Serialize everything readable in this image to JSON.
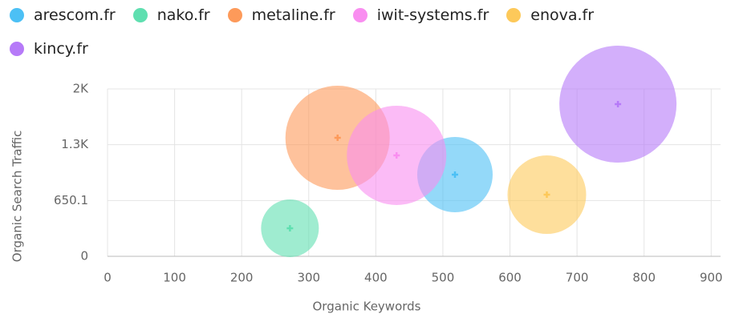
{
  "chart_data": {
    "type": "bubble",
    "x_label": "Organic Keywords",
    "y_label": "Organic Search Traffic",
    "xlim": [
      0,
      914
    ],
    "xticks": [
      0,
      100,
      200,
      300,
      400,
      500,
      600,
      700,
      800,
      900
    ],
    "ylim": [
      0,
      1950.3
    ],
    "yticks": [
      0,
      650.1,
      {
        "value": 1300.2,
        "label": "1.3K"
      },
      {
        "value": 1950.3,
        "label": "2K"
      }
    ],
    "grid": true,
    "series": [
      {
        "name": "arescom.fr",
        "color": "#4cc0f5",
        "x": [
          518
        ],
        "y": [
          952
        ],
        "size": [
          2209
        ]
      },
      {
        "name": "nako.fr",
        "color": "#5fdfb0",
        "x": [
          272
        ],
        "y": [
          327
        ],
        "size": [
          1296
        ]
      },
      {
        "name": "metaline.fr",
        "color": "#fd9a5a",
        "x": [
          343
        ],
        "y": [
          1381
        ],
        "size": [
          4225
        ]
      },
      {
        "name": "iwit-systems.fr",
        "color": "#f98ef0",
        "x": [
          431
        ],
        "y": [
          1176
        ],
        "size": [
          3844
        ]
      },
      {
        "name": "enova.fr",
        "color": "#fdc95a",
        "x": [
          655
        ],
        "y": [
          718
        ],
        "size": [
          2401
        ]
      },
      {
        "name": "kincy.fr",
        "color": "#b67af8",
        "x": [
          761
        ],
        "y": [
          1773
        ],
        "size": [
          5329
        ]
      }
    ]
  }
}
